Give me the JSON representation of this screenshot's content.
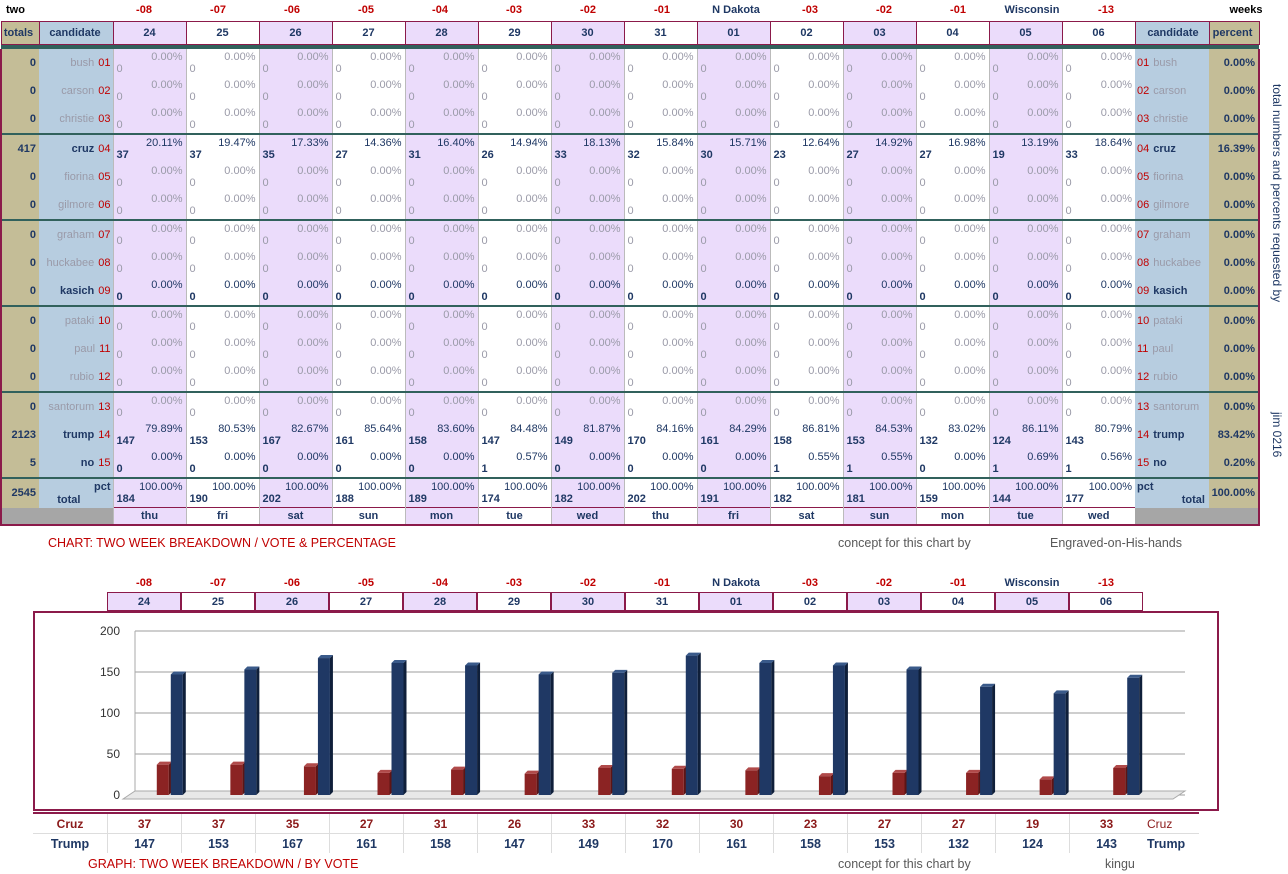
{
  "top_left_word": "two",
  "top_right_word": "weeks",
  "day_offsets": [
    "-08",
    "-07",
    "-06",
    "-05",
    "-04",
    "-03",
    "-02",
    "-01",
    "N Dakota",
    "-03",
    "-02",
    "-01",
    "Wisconsin",
    "-13"
  ],
  "dates": [
    "24",
    "25",
    "26",
    "27",
    "28",
    "29",
    "30",
    "31",
    "01",
    "02",
    "03",
    "04",
    "05",
    "06"
  ],
  "weekdays": [
    "thu",
    "fri",
    "sat",
    "sun",
    "mon",
    "tue",
    "wed",
    "thu",
    "fri",
    "sat",
    "sun",
    "mon",
    "tue",
    "wed"
  ],
  "table_headers": {
    "totals": "totals",
    "candidate": "candidate",
    "candidate_right": "candidate",
    "percent": "percent"
  },
  "candidates": [
    {
      "name": "bush",
      "num": "01",
      "total": "0",
      "percent": "0.00%",
      "active": false,
      "votes": [
        "0",
        "0",
        "0",
        "0",
        "0",
        "0",
        "0",
        "0",
        "0",
        "0",
        "0",
        "0",
        "0",
        "0"
      ],
      "pcts": [
        "0.00%",
        "0.00%",
        "0.00%",
        "0.00%",
        "0.00%",
        "0.00%",
        "0.00%",
        "0.00%",
        "0.00%",
        "0.00%",
        "0.00%",
        "0.00%",
        "0.00%",
        "0.00%"
      ]
    },
    {
      "name": "carson",
      "num": "02",
      "total": "0",
      "percent": "0.00%",
      "active": false,
      "votes": [
        "0",
        "0",
        "0",
        "0",
        "0",
        "0",
        "0",
        "0",
        "0",
        "0",
        "0",
        "0",
        "0",
        "0"
      ],
      "pcts": [
        "0.00%",
        "0.00%",
        "0.00%",
        "0.00%",
        "0.00%",
        "0.00%",
        "0.00%",
        "0.00%",
        "0.00%",
        "0.00%",
        "0.00%",
        "0.00%",
        "0.00%",
        "0.00%"
      ]
    },
    {
      "name": "christie",
      "num": "03",
      "total": "0",
      "percent": "0.00%",
      "active": false,
      "votes": [
        "0",
        "0",
        "0",
        "0",
        "0",
        "0",
        "0",
        "0",
        "0",
        "0",
        "0",
        "0",
        "0",
        "0"
      ],
      "pcts": [
        "0.00%",
        "0.00%",
        "0.00%",
        "0.00%",
        "0.00%",
        "0.00%",
        "0.00%",
        "0.00%",
        "0.00%",
        "0.00%",
        "0.00%",
        "0.00%",
        "0.00%",
        "0.00%"
      ]
    },
    {
      "name": "cruz",
      "num": "04",
      "total": "417",
      "percent": "16.39%",
      "active": true,
      "votes": [
        "37",
        "37",
        "35",
        "27",
        "31",
        "26",
        "33",
        "32",
        "30",
        "23",
        "27",
        "27",
        "19",
        "33"
      ],
      "pcts": [
        "20.11%",
        "19.47%",
        "17.33%",
        "14.36%",
        "16.40%",
        "14.94%",
        "18.13%",
        "15.84%",
        "15.71%",
        "12.64%",
        "14.92%",
        "16.98%",
        "13.19%",
        "18.64%"
      ]
    },
    {
      "name": "fiorina",
      "num": "05",
      "total": "0",
      "percent": "0.00%",
      "active": false,
      "votes": [
        "0",
        "0",
        "0",
        "0",
        "0",
        "0",
        "0",
        "0",
        "0",
        "0",
        "0",
        "0",
        "0",
        "0"
      ],
      "pcts": [
        "0.00%",
        "0.00%",
        "0.00%",
        "0.00%",
        "0.00%",
        "0.00%",
        "0.00%",
        "0.00%",
        "0.00%",
        "0.00%",
        "0.00%",
        "0.00%",
        "0.00%",
        "0.00%"
      ]
    },
    {
      "name": "gilmore",
      "num": "06",
      "total": "0",
      "percent": "0.00%",
      "active": false,
      "votes": [
        "0",
        "0",
        "0",
        "0",
        "0",
        "0",
        "0",
        "0",
        "0",
        "0",
        "0",
        "0",
        "0",
        "0"
      ],
      "pcts": [
        "0.00%",
        "0.00%",
        "0.00%",
        "0.00%",
        "0.00%",
        "0.00%",
        "0.00%",
        "0.00%",
        "0.00%",
        "0.00%",
        "0.00%",
        "0.00%",
        "0.00%",
        "0.00%"
      ]
    },
    {
      "name": "graham",
      "num": "07",
      "total": "0",
      "percent": "0.00%",
      "active": false,
      "votes": [
        "0",
        "0",
        "0",
        "0",
        "0",
        "0",
        "0",
        "0",
        "0",
        "0",
        "0",
        "0",
        "0",
        "0"
      ],
      "pcts": [
        "0.00%",
        "0.00%",
        "0.00%",
        "0.00%",
        "0.00%",
        "0.00%",
        "0.00%",
        "0.00%",
        "0.00%",
        "0.00%",
        "0.00%",
        "0.00%",
        "0.00%",
        "0.00%"
      ]
    },
    {
      "name": "huckabee",
      "num": "08",
      "total": "0",
      "percent": "0.00%",
      "active": false,
      "votes": [
        "0",
        "0",
        "0",
        "0",
        "0",
        "0",
        "0",
        "0",
        "0",
        "0",
        "0",
        "0",
        "0",
        "0"
      ],
      "pcts": [
        "0.00%",
        "0.00%",
        "0.00%",
        "0.00%",
        "0.00%",
        "0.00%",
        "0.00%",
        "0.00%",
        "0.00%",
        "0.00%",
        "0.00%",
        "0.00%",
        "0.00%",
        "0.00%"
      ]
    },
    {
      "name": "kasich",
      "num": "09",
      "total": "0",
      "percent": "0.00%",
      "active": true,
      "votes": [
        "0",
        "0",
        "0",
        "0",
        "0",
        "0",
        "0",
        "0",
        "0",
        "0",
        "0",
        "0",
        "0",
        "0"
      ],
      "pcts": [
        "0.00%",
        "0.00%",
        "0.00%",
        "0.00%",
        "0.00%",
        "0.00%",
        "0.00%",
        "0.00%",
        "0.00%",
        "0.00%",
        "0.00%",
        "0.00%",
        "0.00%",
        "0.00%"
      ]
    },
    {
      "name": "pataki",
      "num": "10",
      "total": "0",
      "percent": "0.00%",
      "active": false,
      "votes": [
        "0",
        "0",
        "0",
        "0",
        "0",
        "0",
        "0",
        "0",
        "0",
        "0",
        "0",
        "0",
        "0",
        "0"
      ],
      "pcts": [
        "0.00%",
        "0.00%",
        "0.00%",
        "0.00%",
        "0.00%",
        "0.00%",
        "0.00%",
        "0.00%",
        "0.00%",
        "0.00%",
        "0.00%",
        "0.00%",
        "0.00%",
        "0.00%"
      ]
    },
    {
      "name": "paul",
      "num": "11",
      "total": "0",
      "percent": "0.00%",
      "active": false,
      "votes": [
        "0",
        "0",
        "0",
        "0",
        "0",
        "0",
        "0",
        "0",
        "0",
        "0",
        "0",
        "0",
        "0",
        "0"
      ],
      "pcts": [
        "0.00%",
        "0.00%",
        "0.00%",
        "0.00%",
        "0.00%",
        "0.00%",
        "0.00%",
        "0.00%",
        "0.00%",
        "0.00%",
        "0.00%",
        "0.00%",
        "0.00%",
        "0.00%"
      ]
    },
    {
      "name": "rubio",
      "num": "12",
      "total": "0",
      "percent": "0.00%",
      "active": false,
      "votes": [
        "0",
        "0",
        "0",
        "0",
        "0",
        "0",
        "0",
        "0",
        "0",
        "0",
        "0",
        "0",
        "0",
        "0"
      ],
      "pcts": [
        "0.00%",
        "0.00%",
        "0.00%",
        "0.00%",
        "0.00%",
        "0.00%",
        "0.00%",
        "0.00%",
        "0.00%",
        "0.00%",
        "0.00%",
        "0.00%",
        "0.00%",
        "0.00%"
      ]
    },
    {
      "name": "santorum",
      "num": "13",
      "total": "0",
      "percent": "0.00%",
      "active": false,
      "votes": [
        "0",
        "0",
        "0",
        "0",
        "0",
        "0",
        "0",
        "0",
        "0",
        "0",
        "0",
        "0",
        "0",
        "0"
      ],
      "pcts": [
        "0.00%",
        "0.00%",
        "0.00%",
        "0.00%",
        "0.00%",
        "0.00%",
        "0.00%",
        "0.00%",
        "0.00%",
        "0.00%",
        "0.00%",
        "0.00%",
        "0.00%",
        "0.00%"
      ]
    },
    {
      "name": "trump",
      "num": "14",
      "total": "2123",
      "percent": "83.42%",
      "active": true,
      "votes": [
        "147",
        "153",
        "167",
        "161",
        "158",
        "147",
        "149",
        "170",
        "161",
        "158",
        "153",
        "132",
        "124",
        "143"
      ],
      "pcts": [
        "79.89%",
        "80.53%",
        "82.67%",
        "85.64%",
        "83.60%",
        "84.48%",
        "81.87%",
        "84.16%",
        "84.29%",
        "86.81%",
        "84.53%",
        "83.02%",
        "86.11%",
        "80.79%"
      ]
    },
    {
      "name": "no",
      "num": "15",
      "total": "5",
      "percent": "0.20%",
      "active": true,
      "votes": [
        "0",
        "0",
        "0",
        "0",
        "0",
        "1",
        "0",
        "0",
        "0",
        "1",
        "1",
        "0",
        "1",
        "1"
      ],
      "pcts": [
        "0.00%",
        "0.00%",
        "0.00%",
        "0.00%",
        "0.00%",
        "0.57%",
        "0.00%",
        "0.00%",
        "0.00%",
        "0.55%",
        "0.55%",
        "0.00%",
        "0.69%",
        "0.56%"
      ]
    }
  ],
  "totals_row": {
    "label": "total",
    "pct_label": "pct",
    "grand_total": "2545",
    "grand_percent": "100.00%",
    "votes": [
      "184",
      "190",
      "202",
      "188",
      "189",
      "174",
      "182",
      "202",
      "191",
      "182",
      "181",
      "159",
      "144",
      "177"
    ],
    "pcts": [
      "100.00%",
      "100.00%",
      "100.00%",
      "100.00%",
      "100.00%",
      "100.00%",
      "100.00%",
      "100.00%",
      "100.00%",
      "100.00%",
      "100.00%",
      "100.00%",
      "100.00%",
      "100.00%"
    ]
  },
  "side_note": "total numbers and percents requested by",
  "side_author": "jim 0216",
  "chart_caption": "CHART: TWO WEEK BREAKDOWN / VOTE & PERCENTAGE",
  "concept_text": "concept for this chart by",
  "chart_credit": "Engraved-on-His-hands",
  "graph_caption": "GRAPH: TWO WEEK BREAKDOWN / BY VOTE",
  "graph_credit": "kingu",
  "colors": {
    "cruz": "#8b2323",
    "trump": "#1f3864",
    "frame": "#8b1a4a",
    "pink": "#ebdcfb",
    "tan": "#c4bd97",
    "blue": "#b7cde0"
  },
  "chart_data": {
    "type": "bar",
    "categories": [
      "24",
      "25",
      "26",
      "27",
      "28",
      "29",
      "30",
      "31",
      "01",
      "02",
      "03",
      "04",
      "05",
      "06"
    ],
    "series": [
      {
        "name": "Cruz",
        "values": [
          37,
          37,
          35,
          27,
          31,
          26,
          33,
          32,
          30,
          23,
          27,
          27,
          19,
          33
        ]
      },
      {
        "name": "Trump",
        "values": [
          147,
          153,
          167,
          161,
          158,
          147,
          149,
          170,
          161,
          158,
          153,
          132,
          124,
          143
        ]
      }
    ],
    "ylim": [
      0,
      200
    ],
    "yticks": [
      "0",
      "50",
      "100",
      "150",
      "200"
    ],
    "grid": true
  }
}
